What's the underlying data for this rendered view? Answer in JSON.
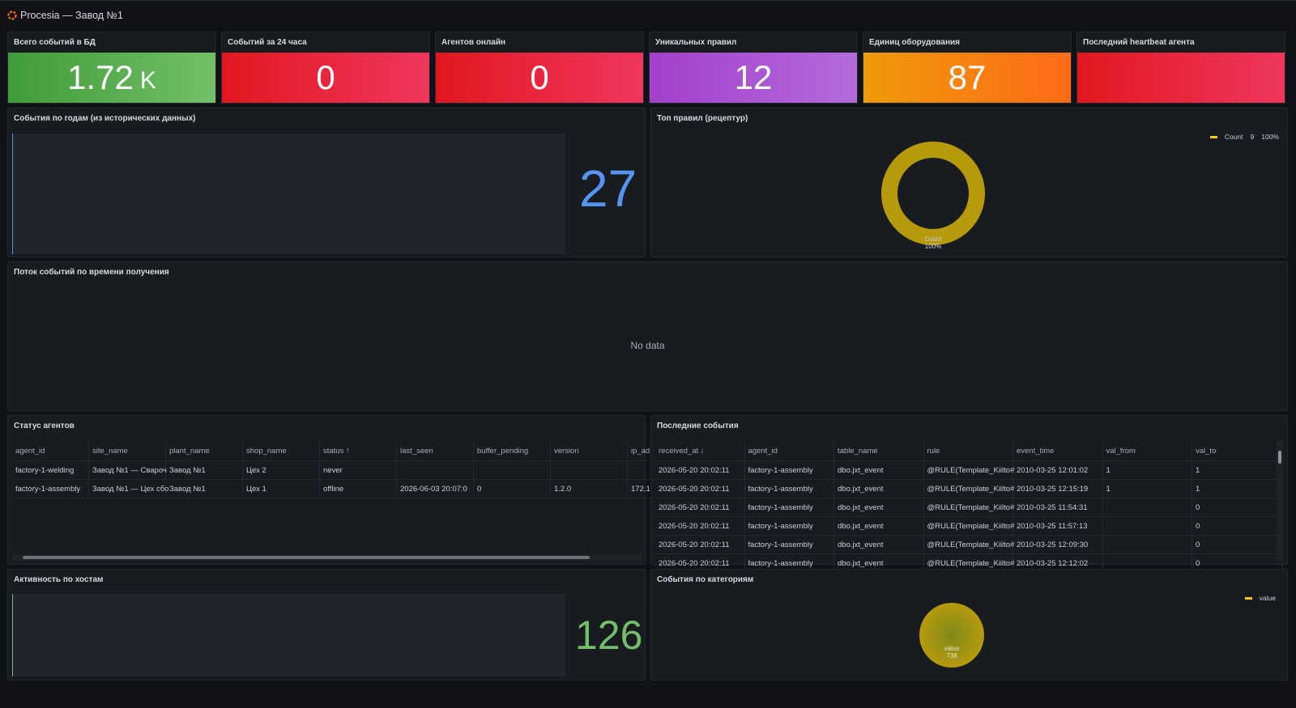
{
  "header": {
    "title": "Procesia — Завод №1"
  },
  "stats": [
    {
      "title": "Всего событий в БД",
      "value": "1.72",
      "unit": "K",
      "colors": [
        "#3f9c37",
        "#73bf69"
      ]
    },
    {
      "title": "Событий за 24 часа",
      "value": 0,
      "colors": [
        "#e0181f",
        "#f0365f"
      ]
    },
    {
      "title": "Агентов онлайн",
      "value": 0,
      "colors": [
        "#e0181f",
        "#f0365f"
      ]
    },
    {
      "title": "Уникальных правил",
      "value": 12,
      "colors": [
        "#a340cc",
        "#b36bdb"
      ]
    },
    {
      "title": "Единиц оборудования",
      "value": 87,
      "colors": [
        "#ee9a0a",
        "#ff6a18"
      ]
    },
    {
      "title": "Последний heartbeat агента",
      "colors": [
        "#e0181f",
        "#f0365f"
      ]
    }
  ],
  "years_panel": {
    "title": "События по годам (из исторических данных)",
    "value": 27,
    "color": "#5794f2"
  },
  "rules_panel": {
    "title": "Топ правил (рецептур)",
    "legend": {
      "name": "Count",
      "value": 9,
      "percent": "100%"
    },
    "slice_label": {
      "name": "Count",
      "percent": "100%"
    },
    "color": "#b59a0c"
  },
  "stream_panel": {
    "title": "Поток событий по времени получения",
    "message": "No data"
  },
  "agents_panel": {
    "title": "Статус агентов",
    "columns": [
      "agent_id",
      "site_name",
      "plant_name",
      "shop_name",
      "status ↑",
      "last_seen",
      "buffer_pending",
      "version",
      "ip_ad"
    ],
    "rows": [
      [
        "factory-1-welding",
        "Завод №1 — Свароч",
        "Завод №1",
        "Цех 2",
        "never",
        null,
        null,
        null,
        null
      ],
      [
        "factory-1-assembly",
        "Завод №1 — Цех сбо",
        "Завод №1",
        "Цех 1",
        "offline",
        "2026-06-03 20:07:0",
        0,
        "1.2.0",
        "172.1"
      ]
    ]
  },
  "events_panel": {
    "title": "Последние события",
    "columns": [
      "received_at ↓",
      "agent_id",
      "table_name",
      "rule",
      "event_time",
      "val_from",
      "val_to"
    ],
    "rows": [
      [
        "2026-05-20 20:02:11",
        "factory-1-assembly",
        "dbo.jxt_event",
        "@RULE(Template_Kiilto#",
        "2010-03-25 12:01:02",
        1,
        1
      ],
      [
        "2026-05-20 20:02:11",
        "factory-1-assembly",
        "dbo.jxt_event",
        "@RULE(Template_Kiilto#",
        "2010-03-25 12:15:19",
        1,
        1
      ],
      [
        "2026-05-20 20:02:11",
        "factory-1-assembly",
        "dbo.jxt_event",
        "@RULE(Template_Kiilto#",
        "2010-03-25 11:54:31",
        null,
        0
      ],
      [
        "2026-05-20 20:02:11",
        "factory-1-assembly",
        "dbo.jxt_event",
        "@RULE(Template_Kiilto#",
        "2010-03-25 11:57:13",
        null,
        0
      ],
      [
        "2026-05-20 20:02:11",
        "factory-1-assembly",
        "dbo.jxt_event",
        "@RULE(Template_Kiilto#",
        "2010-03-25 12:09:30",
        null,
        0
      ],
      [
        "2026-05-20 20:02:11",
        "factory-1-assembly",
        "dbo.jxt_event",
        "@RULE(Template_Kiilto#",
        "2010-03-25 12:12:02",
        null,
        0
      ]
    ]
  },
  "hosts_panel": {
    "title": "Активность по хостам",
    "value": 126,
    "color": "#73bf69"
  },
  "categories_panel": {
    "title": "События по категориям",
    "legend": {
      "name": "value"
    },
    "slice_label": {
      "name": "value",
      "value": 738
    },
    "color": "#b59a0c"
  }
}
